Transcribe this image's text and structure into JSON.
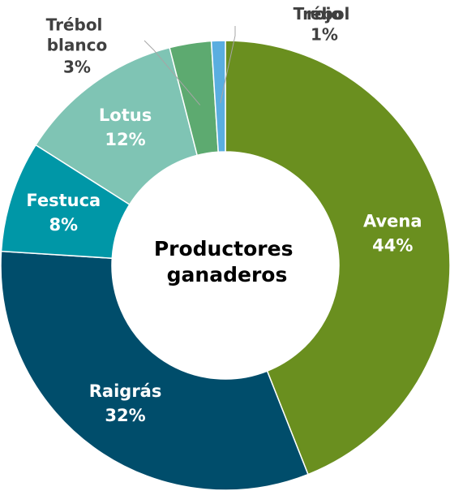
{
  "chart_data": {
    "type": "donut",
    "title": "Productores ganaderos",
    "categories": [
      "Avena",
      "Raigrás",
      "Festuca",
      "Lotus",
      "Trébol blanco",
      "Trébol rojo"
    ],
    "values": [
      44,
      32,
      8,
      12,
      3,
      1
    ],
    "value_labels": [
      "44%",
      "32%",
      "8%",
      "12%",
      "3%",
      "1%"
    ],
    "colors": [
      "#6a8f1f",
      "#004d6b",
      "#0097a7",
      "#7fc4b4",
      "#5daa70",
      "#5aaee0"
    ]
  }
}
